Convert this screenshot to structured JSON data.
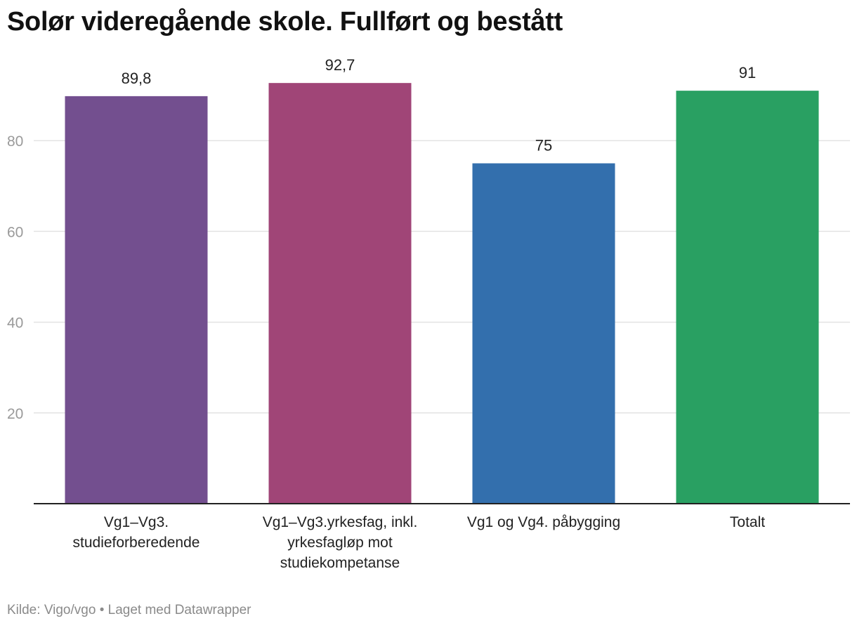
{
  "chart_data": {
    "type": "bar",
    "title": "Solør videregående skole. Fullført og bestått",
    "xlabel": "",
    "ylabel": "",
    "categories": [
      [
        "Vg1–Vg3.",
        "studieforberedende"
      ],
      [
        "Vg1–Vg3.yrkesfag, inkl.",
        "yrkesfagløp mot",
        "studiekompetanse"
      ],
      [
        "Vg1 og Vg4. påbygging"
      ],
      [
        "Totalt"
      ]
    ],
    "values": [
      89.8,
      92.7,
      75,
      91
    ],
    "value_labels": [
      "89,8",
      "92,7",
      "75",
      "91"
    ],
    "colors": [
      "#734f8f",
      "#a04577",
      "#336fad",
      "#29a062"
    ],
    "ylim": [
      0,
      100
    ],
    "yticks": [
      20,
      40,
      60,
      80
    ],
    "grid": true,
    "legend": "none"
  },
  "footer": {
    "source_label": "Kilde:",
    "source": "Vigo/vgo",
    "separator": "•",
    "credit": "Laget med Datawrapper"
  }
}
